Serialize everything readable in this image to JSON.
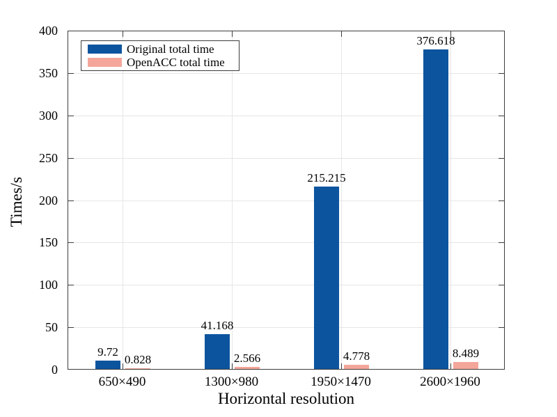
{
  "chart_data": {
    "type": "bar",
    "title": "",
    "xlabel": "Horizontal resolution",
    "ylabel": "Times/s",
    "categories": [
      "650×490",
      "1300×980",
      "1950×1470",
      "2600×1960"
    ],
    "series": [
      {
        "name": "Original total time",
        "color": "#0d549e",
        "values": [
          9.72,
          41.168,
          215.215,
          376.618
        ],
        "value_labels": [
          "9.72",
          "41.168",
          "215.215",
          "376.618"
        ]
      },
      {
        "name": "OpenACC total time",
        "color": "#f4a69a",
        "values": [
          0.828,
          2.566,
          4.778,
          8.489
        ],
        "value_labels": [
          "0.828",
          "2.566",
          "4.778",
          "8.489"
        ]
      }
    ],
    "ylim": [
      0,
      400
    ],
    "yticks": [
      0,
      50,
      100,
      150,
      200,
      250,
      300,
      350,
      400
    ],
    "grid": true,
    "legend_position": "top-left",
    "colors": {
      "axis": "#3c3c3c",
      "grid": "#e6e6e6",
      "text": "#000000",
      "background": "#ffffff"
    }
  }
}
